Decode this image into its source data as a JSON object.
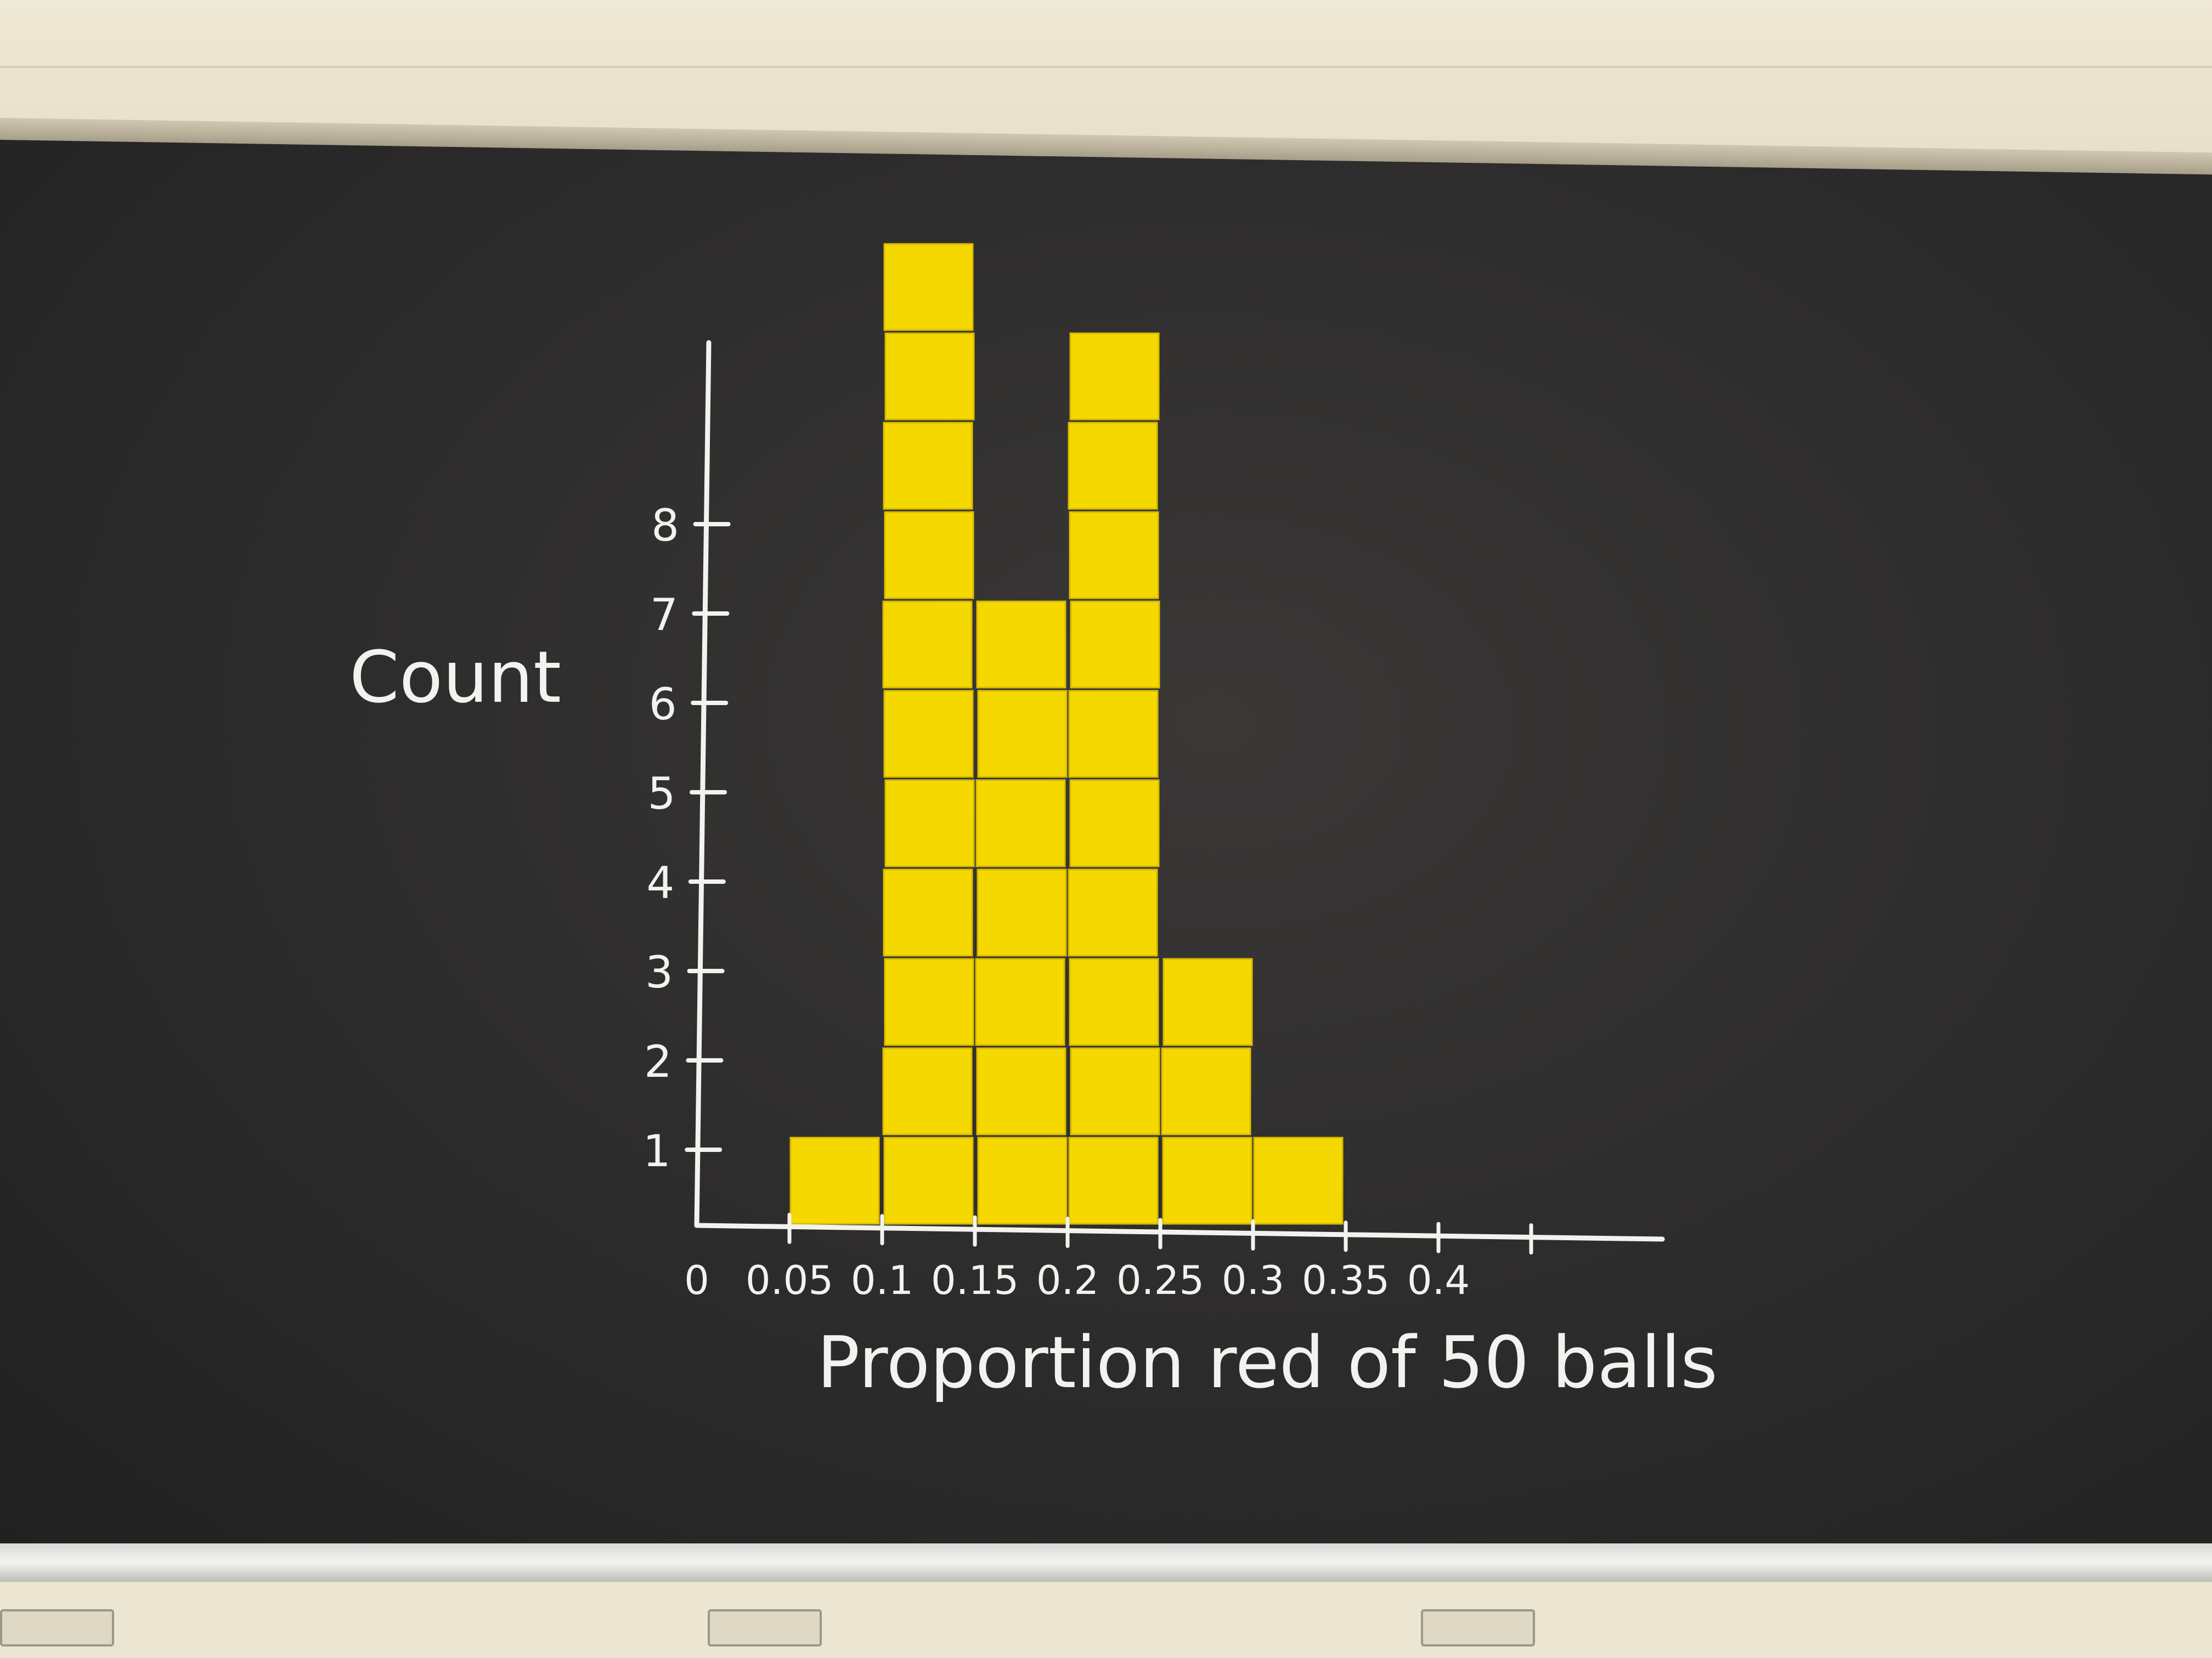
{
  "chart_data": {
    "type": "bar",
    "ylabel": "Count",
    "xlabel": "Proportion red of 50 balls",
    "y_ticks": [
      "1",
      "2",
      "3",
      "4",
      "5",
      "6",
      "7",
      "8"
    ],
    "x_ticks": [
      "0",
      "0.05",
      "0.1",
      "0.15",
      "0.2",
      "0.25",
      "0.3",
      "0.35",
      "0.4"
    ],
    "xlim": [
      0,
      0.45
    ],
    "ylim": [
      0,
      11
    ],
    "bins": [
      {
        "start": 0.05,
        "end": 0.1,
        "count": 1
      },
      {
        "start": 0.1,
        "end": 0.15,
        "count": 11
      },
      {
        "start": 0.15,
        "end": 0.2,
        "count": 7
      },
      {
        "start": 0.2,
        "end": 0.25,
        "count": 10
      },
      {
        "start": 0.25,
        "end": 0.3,
        "count": 3
      },
      {
        "start": 0.3,
        "end": 0.35,
        "count": 1
      }
    ],
    "grid": false,
    "colors": {
      "bar": "#f5d800",
      "chalk": "#f2f2ee",
      "board": "#2c2b2b"
    }
  }
}
